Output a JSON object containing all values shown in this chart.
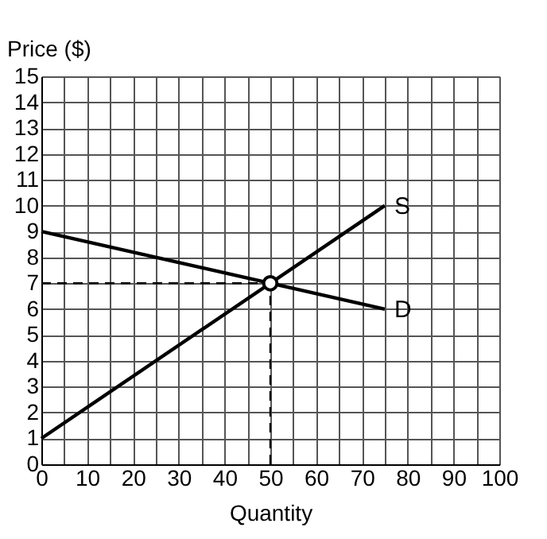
{
  "chart_data": {
    "type": "line",
    "xlabel": "Quantity",
    "ylabel": "Price ($)",
    "xlim": [
      0,
      100
    ],
    "ylim": [
      0,
      15
    ],
    "xticks": [
      0,
      {
        "value": 5,
        "label": null
      },
      10,
      {
        "value": 15,
        "label": null
      },
      20,
      {
        "value": 25,
        "label": null
      },
      30,
      {
        "value": 35,
        "label": null
      },
      40,
      {
        "value": 45,
        "label": null
      },
      50,
      {
        "value": 55,
        "label": null
      },
      60,
      {
        "value": 65,
        "label": null
      },
      70,
      {
        "value": 75,
        "label": null
      },
      80,
      {
        "value": 85,
        "label": null
      },
      90,
      {
        "value": 95,
        "label": null
      },
      100
    ],
    "yticks": [
      0,
      1,
      2,
      3,
      4,
      5,
      6,
      7,
      8,
      9,
      10,
      11,
      12,
      13,
      14,
      15
    ],
    "grid": true,
    "legend": false,
    "series": [
      {
        "name": "S",
        "line_style": "solid",
        "color": "#000000",
        "x": [
          0,
          75
        ],
        "values": [
          1,
          10
        ]
      },
      {
        "name": "D",
        "line_style": "solid",
        "color": "#000000",
        "x": [
          0,
          75
        ],
        "values": [
          9,
          6
        ]
      },
      {
        "type": "line",
        "line_style": "dashed",
        "color": "#000000",
        "x": [
          0,
          50
        ],
        "values": [
          7,
          7
        ]
      },
      {
        "type": "line",
        "line_style": "dashed",
        "color": "#000000",
        "x": [
          50,
          50
        ],
        "values": [
          0,
          7
        ]
      },
      {
        "type": "scatter",
        "marker": "circle",
        "color": "#000000",
        "x": [
          50
        ],
        "values": [
          7
        ]
      }
    ]
  }
}
